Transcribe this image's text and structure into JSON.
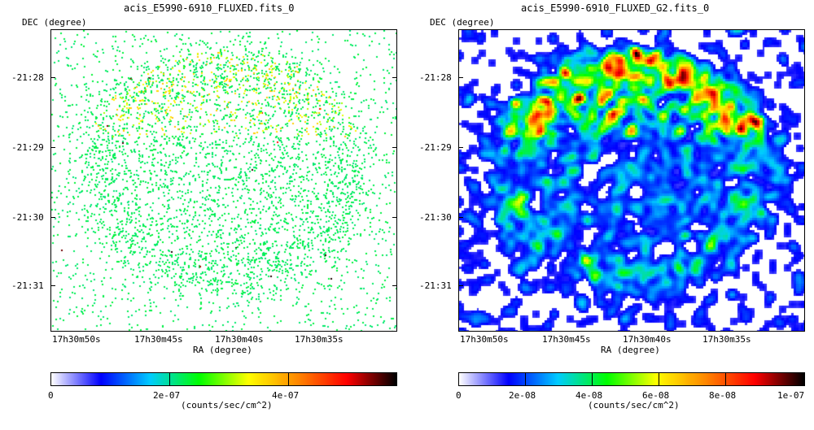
{
  "chart_data": [
    {
      "type": "heatmap",
      "title": "acis_E5990-6910_FLUXED.fits_0",
      "xlabel": "RA (degree)",
      "ylabel": "DEC (degree)",
      "x_tick_labels": [
        "17h30m50s",
        "17h30m45s",
        "17h30m40s",
        "17h30m35s"
      ],
      "y_tick_labels": [
        "-21:28",
        "-21:29",
        "-21:30",
        "-21:31"
      ],
      "colorbar": {
        "label": "(counts/sec/cm^2)",
        "ticks": [
          "0",
          "2e-07",
          "4e-07"
        ],
        "tick_values": [
          0,
          2e-07,
          4e-07
        ],
        "range": [
          0,
          5.8e-07
        ],
        "colormap": [
          "#ffffff",
          "#0000ff",
          "#00ccff",
          "#00ff00",
          "#ffff00",
          "#ff8800",
          "#ff0000",
          "#000000"
        ]
      },
      "style": "sparse-points",
      "shell_center": [
        0.5,
        0.47
      ],
      "shell_radius": [
        0.32,
        0.37
      ]
    },
    {
      "type": "heatmap",
      "title": "acis_E5990-6910_FLUXED_G2.fits_0",
      "xlabel": "RA (degree)",
      "ylabel": "DEC (degree)",
      "x_tick_labels": [
        "17h30m50s",
        "17h30m45s",
        "17h30m40s",
        "17h30m35s"
      ],
      "y_tick_labels": [
        "-21:28",
        "-21:29",
        "-21:30",
        "-21:31"
      ],
      "colorbar": {
        "label": "(counts/sec/cm^2)",
        "ticks": [
          "0",
          "2e-08",
          "4e-08",
          "6e-08",
          "8e-08",
          "1e-07"
        ],
        "tick_values": [
          0,
          2e-08,
          4e-08,
          6e-08,
          8e-08,
          1e-07
        ],
        "range": [
          0,
          1e-07
        ],
        "colormap": [
          "#ffffff",
          "#0000ff",
          "#00ccff",
          "#00ff00",
          "#ffff00",
          "#ff8800",
          "#ff0000",
          "#000000"
        ]
      },
      "style": "smoothed",
      "shell_center": [
        0.5,
        0.47
      ],
      "shell_radius": [
        0.32,
        0.37
      ]
    }
  ]
}
